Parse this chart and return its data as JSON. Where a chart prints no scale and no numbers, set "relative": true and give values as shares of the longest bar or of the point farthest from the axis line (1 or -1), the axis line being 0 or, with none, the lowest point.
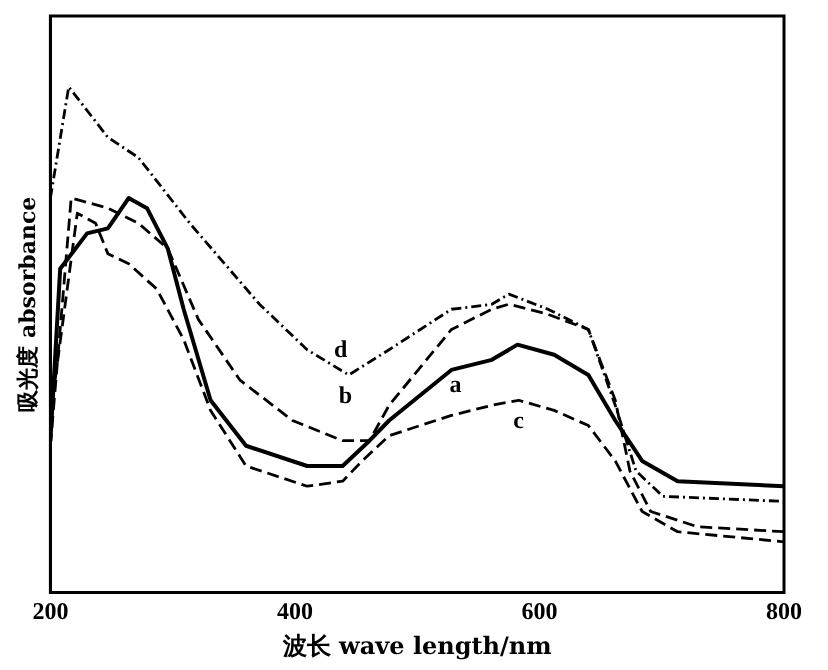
{
  "chart_data": {
    "type": "line",
    "relative": true,
    "xlabel": "波长 wave length/nm",
    "ylabel": "吸光度 absorbance",
    "xlim": [
      200,
      800
    ],
    "xticks": [
      200,
      400,
      600,
      800
    ],
    "grid": false,
    "legend": false,
    "marker": "none",
    "series": [
      {
        "color": "#000000",
        "line_style": "solid",
        "x": [
          200,
          208,
          230,
          247,
          264,
          279,
          296,
          309,
          331,
          360,
          410,
          439,
          461,
          477,
          528,
          561,
          582,
          612,
          640,
          662,
          684,
          713,
          800
        ],
        "values": [
          0.3,
          0.64,
          0.71,
          0.72,
          0.78,
          0.76,
          0.68,
          0.56,
          0.38,
          0.29,
          0.25,
          0.25,
          0.3,
          0.34,
          0.44,
          0.46,
          0.49,
          0.47,
          0.43,
          0.34,
          0.26,
          0.22,
          0.21
        ]
      },
      {
        "color": "#000000",
        "line_style": "dashed",
        "x": [
          200,
          217,
          247,
          272,
          296,
          321,
          355,
          398,
          439,
          461,
          477,
          528,
          561,
          575,
          607,
          640,
          662,
          674,
          691,
          729,
          800
        ],
        "values": [
          0.29,
          0.78,
          0.76,
          0.73,
          0.68,
          0.54,
          0.42,
          0.34,
          0.3,
          0.3,
          0.37,
          0.52,
          0.56,
          0.57,
          0.55,
          0.52,
          0.38,
          0.24,
          0.16,
          0.13,
          0.12
        ]
      },
      {
        "color": "#000000",
        "line_style": "dashed",
        "x": [
          200,
          222,
          237,
          247,
          264,
          287,
          309,
          331,
          360,
          410,
          439,
          455,
          477,
          528,
          561,
          583,
          612,
          640,
          662,
          684,
          713,
          800
        ],
        "values": [
          0.35,
          0.75,
          0.73,
          0.67,
          0.65,
          0.6,
          0.5,
          0.36,
          0.25,
          0.21,
          0.22,
          0.26,
          0.31,
          0.35,
          0.37,
          0.38,
          0.36,
          0.33,
          0.26,
          0.16,
          0.12,
          0.1
        ]
      },
      {
        "color": "#000000",
        "line_style": "dotted",
        "x": [
          200,
          215,
          247,
          272,
          314,
          371,
          410,
          444,
          477,
          528,
          561,
          575,
          607,
          640,
          662,
          679,
          701,
          800
        ],
        "values": [
          0.78,
          1.0,
          0.9,
          0.86,
          0.73,
          0.57,
          0.48,
          0.43,
          0.48,
          0.56,
          0.57,
          0.59,
          0.56,
          0.52,
          0.37,
          0.24,
          0.19,
          0.18
        ]
      }
    ],
    "annotations": [
      {
        "text": "a",
        "x": 528,
        "y": 0.44
      },
      {
        "text": "b",
        "x": 461,
        "y": 0.3
      },
      {
        "text": "c",
        "x": 583,
        "y": 0.38
      },
      {
        "text": "d",
        "x": 444,
        "y": 0.43
      }
    ]
  }
}
